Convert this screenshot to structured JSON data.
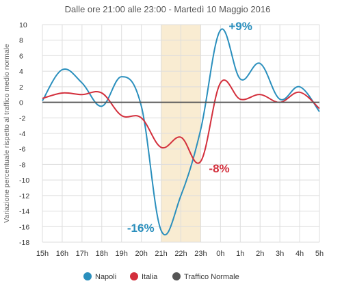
{
  "chart_data": {
    "type": "line",
    "title": "Dalle ore 21:00 alle 23:00 - Martedì 10 Maggio 2016",
    "ylabel": "Variazione percentuale rispetto al traffico medio normale",
    "xlabel": "",
    "categories": [
      "15h",
      "16h",
      "17h",
      "18h",
      "19h",
      "20h",
      "21h",
      "22h",
      "23h",
      "0h",
      "1h",
      "2h",
      "3h",
      "4h",
      "5h"
    ],
    "ylim": [
      -18,
      10
    ],
    "yticks": [
      10,
      8,
      6,
      4,
      2,
      0,
      -2,
      -4,
      -6,
      -8,
      -10,
      -12,
      -14,
      -16,
      -18
    ],
    "grid": true,
    "highlight": {
      "from": "21h",
      "to": "23h",
      "color": "#f9ecd2"
    },
    "series": [
      {
        "name": "Napoli",
        "color": "#2a8fbd",
        "values": [
          0.2,
          4.2,
          2.5,
          -0.5,
          3.3,
          -0.5,
          -16.5,
          -12,
          -3.5,
          9.3,
          3.0,
          5.0,
          0.4,
          2.0,
          -1.2
        ]
      },
      {
        "name": "Italia",
        "color": "#d32f3c",
        "values": [
          0.5,
          1.2,
          1.0,
          1.2,
          -1.7,
          -2.0,
          -5.8,
          -4.5,
          -7.6,
          2.5,
          0.4,
          1.0,
          0.0,
          1.3,
          -0.8
        ]
      },
      {
        "name": "Traffico Normale",
        "color": "#555555",
        "values": [
          0,
          0,
          0,
          0,
          0,
          0,
          0,
          0,
          0,
          0,
          0,
          0,
          0,
          0,
          0
        ]
      }
    ],
    "annotations": [
      {
        "text": "+9%",
        "x": "0h",
        "y": 9.3,
        "color": "#2a8fbd",
        "anchor": "right-top"
      },
      {
        "text": "-8%",
        "x": "23h",
        "y": -7.6,
        "color": "#d32f3c",
        "anchor": "right"
      },
      {
        "text": "-16%",
        "x": "21h",
        "y": -16.5,
        "color": "#2a8fbd",
        "anchor": "left"
      }
    ],
    "legend": {
      "position": "bottom"
    }
  }
}
